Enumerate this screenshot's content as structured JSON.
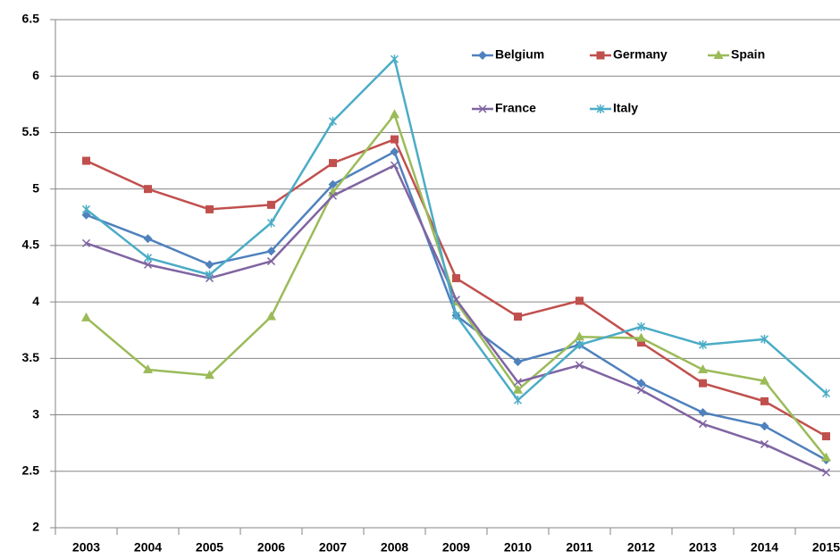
{
  "chart_data": {
    "type": "line",
    "categories": [
      "2003",
      "2004",
      "2005",
      "2006",
      "2007",
      "2008",
      "2009",
      "2010",
      "2011",
      "2012",
      "2013",
      "2014",
      "2015"
    ],
    "series": [
      {
        "name": "Belgium",
        "color": "#4f81bd",
        "marker": "diamond",
        "values": [
          4.77,
          4.56,
          4.33,
          4.45,
          5.04,
          5.33,
          3.88,
          3.47,
          3.62,
          3.28,
          3.02,
          2.9,
          2.6
        ]
      },
      {
        "name": "Germany",
        "color": "#c0504d",
        "marker": "square",
        "values": [
          5.25,
          5.0,
          4.82,
          4.86,
          5.23,
          5.44,
          4.21,
          3.87,
          4.01,
          3.64,
          3.28,
          3.12,
          2.81
        ]
      },
      {
        "name": "Spain",
        "color": "#9bbb59",
        "marker": "triangle",
        "values": [
          3.86,
          3.4,
          3.35,
          3.87,
          4.97,
          5.66,
          4.0,
          3.22,
          3.69,
          3.68,
          3.4,
          3.3,
          2.62
        ]
      },
      {
        "name": "France",
        "color": "#8064a2",
        "marker": "x",
        "values": [
          4.52,
          4.33,
          4.21,
          4.36,
          4.94,
          5.21,
          4.02,
          3.29,
          3.44,
          3.22,
          2.92,
          2.74,
          2.49
        ]
      },
      {
        "name": "Italy",
        "color": "#4bacc6",
        "marker": "star",
        "values": [
          4.82,
          4.39,
          4.24,
          4.7,
          5.6,
          6.15,
          3.88,
          3.13,
          3.62,
          3.78,
          3.62,
          3.67,
          3.19
        ]
      }
    ],
    "ylim": [
      2,
      6.5
    ],
    "yticks": [
      2,
      2.5,
      3,
      3.5,
      4,
      4.5,
      5,
      5.5,
      6,
      6.5
    ],
    "grid": true,
    "legend": "upper right"
  }
}
